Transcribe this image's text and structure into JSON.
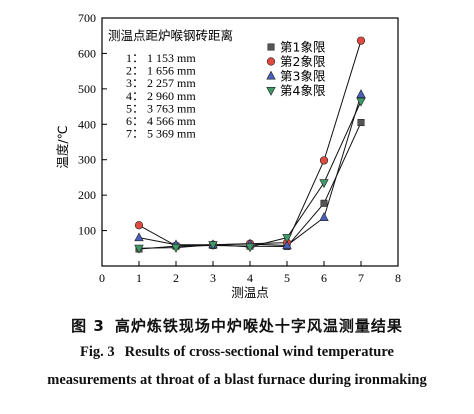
{
  "chart_data": {
    "type": "line",
    "xlabel": "测温点",
    "ylabel": "温度/℃",
    "xlim": [
      0,
      8
    ],
    "ylim": [
      0,
      700
    ],
    "xticks": [
      0,
      1,
      2,
      3,
      4,
      5,
      6,
      7,
      8
    ],
    "yticks": [
      100,
      200,
      300,
      400,
      500,
      600,
      700
    ],
    "ytick_labels_shown": [
      "100",
      "200",
      "300",
      "400",
      "500",
      "600",
      "700"
    ],
    "grid": false,
    "legend_position": "top-right",
    "annotation": {
      "title": "测温点距炉喉钢砖距离",
      "lines": [
        "1： 1 153 mm",
        "2： 1 656 mm",
        "3： 2 257 mm",
        "4： 2 960 mm",
        "5： 3 763 mm",
        "6： 4 566 mm",
        "7： 5 369 mm"
      ]
    },
    "x": [
      1,
      2,
      3,
      4,
      5,
      6,
      7
    ],
    "series": [
      {
        "name": "第1象限",
        "marker": "square",
        "color": "#555555",
        "values": [
          48,
          56,
          58,
          56,
          55,
          177,
          405
        ]
      },
      {
        "name": "第2象限",
        "marker": "circle",
        "color": "#e04a3f",
        "values": [
          115,
          57,
          60,
          63,
          66,
          298,
          636
        ]
      },
      {
        "name": "第3象限",
        "marker": "triangle-up",
        "color": "#4a60b8",
        "values": [
          80,
          60,
          60,
          62,
          58,
          137,
          484
        ]
      },
      {
        "name": "第4象限",
        "marker": "triangle-down",
        "color": "#3f9a68",
        "values": [
          50,
          52,
          60,
          54,
          80,
          235,
          465
        ]
      }
    ]
  },
  "caption": {
    "cn_label": "图 3",
    "cn_text": "高炉炼铁现场中炉喉处十字风温测量结果",
    "en_label": "Fig. 3",
    "en_text_line1": "Results of cross-sectional wind temperature",
    "en_text_line2": "measurements at throat of a blast furnace during ironmaking"
  }
}
